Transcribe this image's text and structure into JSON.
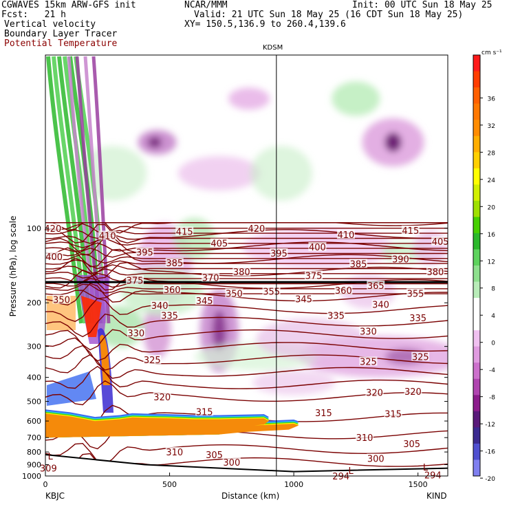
{
  "header": {
    "line1_left": "CGWAVES 15km ARW-GFS init",
    "line1_mid": "NCAR/MMM",
    "line1_right": "Init: 00 UTC Sun 18 May 25",
    "line2_left": "Fcst:   21 h",
    "line2_right": "Valid: 21 UTC Sun 18 May 25 (16 CDT Sun 18 May 25)",
    "line3_left": "Vertical velocity",
    "line3_right": "XY= 150.5,136.9 to 260.4,139.6",
    "line4_left": "Boundary Layer Tracer",
    "line5_left": "Potential Temperature"
  },
  "colors": {
    "potential_temperature_label": "#8b0000",
    "theta_contour": "#7a0000",
    "terrain": "#f58a0a"
  },
  "chart_data": {
    "type": "heatmap",
    "xlabel": "Distance (km)",
    "ylabel": "Pressure (hPa), log scale",
    "x_ticks": [
      0,
      500,
      1000,
      1500
    ],
    "y_ticks": [
      100,
      200,
      300,
      400,
      500,
      600,
      700,
      800,
      900,
      1000
    ],
    "xlim": [
      0,
      1620
    ],
    "ylim": [
      1000,
      20
    ],
    "y_scale": "log",
    "left_station": "KBJC",
    "right_station": "KIND",
    "mid_station": "KDSM",
    "mid_station_x": 930,
    "colorbar": {
      "units": "cm s⁻¹",
      "tick_labels": [
        "36",
        "32",
        "28",
        "24",
        "20",
        "16",
        "12",
        "8",
        "4",
        "0",
        "-4",
        "-8",
        "-12",
        "-16",
        "-20"
      ],
      "colors": [
        "#ff1a1a",
        "#ff3d00",
        "#ff6000",
        "#ff7800",
        "#ff8c00",
        "#ffae00",
        "#ffd000",
        "#ffff00",
        "#d2f000",
        "#9fe000",
        "#46d000",
        "#2bb82b",
        "#5ed35e",
        "#8ee08e",
        "#b8ecb8",
        "#ffffff",
        "#ffffff",
        "#f0c0f0",
        "#e09be0",
        "#cc70cc",
        "#b045b0",
        "#8c1c8c",
        "#5a1a7a",
        "#3b2a90",
        "#5050d0",
        "#8080f0"
      ]
    },
    "theta_contours": [
      300,
      305,
      310,
      315,
      320,
      325,
      330,
      335,
      340,
      345,
      350,
      355,
      360,
      365,
      370,
      375,
      380,
      385,
      390,
      395,
      400,
      405,
      410,
      415,
      420
    ],
    "theta_labels": [
      {
        "t": "420",
        "x": 30,
        "p": 100
      },
      {
        "t": "410",
        "x": 250,
        "p": 107
      },
      {
        "t": "415",
        "x": 560,
        "p": 103
      },
      {
        "t": "420",
        "x": 850,
        "p": 100
      },
      {
        "t": "410",
        "x": 1210,
        "p": 106
      },
      {
        "t": "415",
        "x": 1470,
        "p": 102
      },
      {
        "t": "405",
        "x": 700,
        "p": 115
      },
      {
        "t": "405",
        "x": 1590,
        "p": 113
      },
      {
        "t": "400",
        "x": 35,
        "p": 130
      },
      {
        "t": "395",
        "x": 400,
        "p": 125
      },
      {
        "t": "395",
        "x": 940,
        "p": 126
      },
      {
        "t": "400",
        "x": 1095,
        "p": 119
      },
      {
        "t": "385",
        "x": 520,
        "p": 138
      },
      {
        "t": "380",
        "x": 790,
        "p": 150
      },
      {
        "t": "385",
        "x": 1260,
        "p": 139
      },
      {
        "t": "390",
        "x": 1430,
        "p": 133
      },
      {
        "t": "380",
        "x": 1570,
        "p": 150
      },
      {
        "t": "375",
        "x": 360,
        "p": 162
      },
      {
        "t": "370",
        "x": 665,
        "p": 158
      },
      {
        "t": "375",
        "x": 1080,
        "p": 155
      },
      {
        "t": "365",
        "x": 1330,
        "p": 170
      },
      {
        "t": "360",
        "x": 510,
        "p": 177
      },
      {
        "t": "350",
        "x": 760,
        "p": 183
      },
      {
        "t": "355",
        "x": 910,
        "p": 180
      },
      {
        "t": "360",
        "x": 1200,
        "p": 178
      },
      {
        "t": "355",
        "x": 1490,
        "p": 183
      },
      {
        "t": "350",
        "x": 65,
        "p": 194
      },
      {
        "t": "345",
        "x": 640,
        "p": 196
      },
      {
        "t": "345",
        "x": 1040,
        "p": 193
      },
      {
        "t": "340",
        "x": 460,
        "p": 205
      },
      {
        "t": "340",
        "x": 1350,
        "p": 203
      },
      {
        "t": "335",
        "x": 500,
        "p": 225
      },
      {
        "t": "335",
        "x": 1170,
        "p": 225
      },
      {
        "t": "335",
        "x": 1500,
        "p": 230
      },
      {
        "t": "330",
        "x": 365,
        "p": 265
      },
      {
        "t": "330",
        "x": 1300,
        "p": 260
      },
      {
        "t": "325",
        "x": 430,
        "p": 340
      },
      {
        "t": "325",
        "x": 1300,
        "p": 345
      },
      {
        "t": "325",
        "x": 1510,
        "p": 330
      },
      {
        "t": "320",
        "x": 470,
        "p": 480
      },
      {
        "t": "320",
        "x": 1325,
        "p": 460
      },
      {
        "t": "320",
        "x": 1480,
        "p": 455
      },
      {
        "t": "315",
        "x": 640,
        "p": 550
      },
      {
        "t": "315",
        "x": 1120,
        "p": 555
      },
      {
        "t": "315",
        "x": 1400,
        "p": 560
      },
      {
        "t": "310",
        "x": 1285,
        "p": 700
      },
      {
        "t": "305",
        "x": 1475,
        "p": 740
      },
      {
        "t": "310",
        "x": 520,
        "p": 800
      },
      {
        "t": "305",
        "x": 680,
        "p": 820
      },
      {
        "t": "300",
        "x": 750,
        "p": 880
      },
      {
        "t": "300",
        "x": 1330,
        "p": 850
      },
      {
        "t": "309",
        "x": 12,
        "p": 930
      },
      {
        "t": "294",
        "x": 1560,
        "p": 990
      },
      {
        "t": "294",
        "x": 1190,
        "p": 1000
      }
    ],
    "lows": [
      {
        "t": "L",
        "x": 20,
        "p": 830
      },
      {
        "t": "L",
        "x": 1230,
        "p": 950
      },
      {
        "t": "L",
        "x": 1530,
        "p": 920
      }
    ],
    "thick_line_p": 165
  }
}
